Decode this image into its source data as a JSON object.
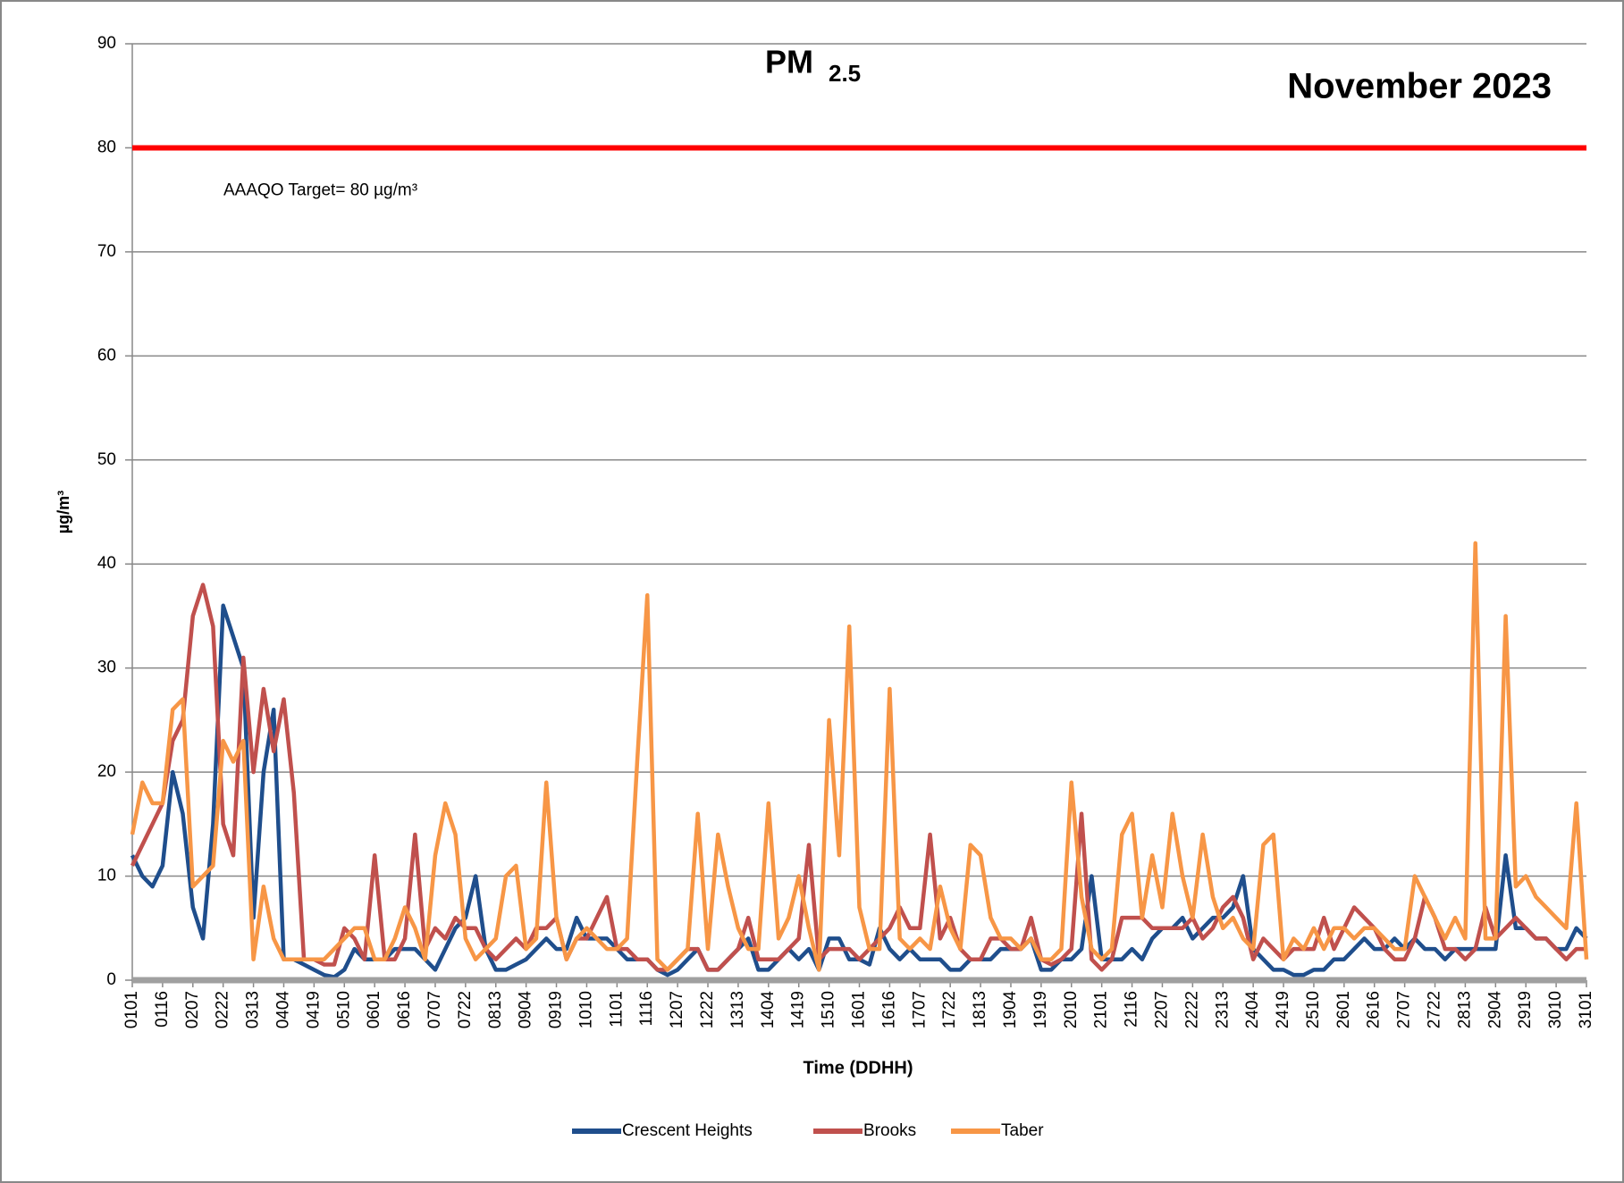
{
  "chart_data": {
    "type": "line",
    "title": "PM",
    "title_subscript": "2.5",
    "subtitle": "November 2023",
    "x_label": "Time (DDHH)",
    "y_label": "µg/m³",
    "target": {
      "value": 80,
      "label": "AAAQO Target= 80 µg/m³",
      "color": "#ff0000"
    },
    "ylim": [
      0,
      90
    ],
    "yticks": [
      0,
      10,
      20,
      30,
      40,
      50,
      60,
      70,
      80,
      90
    ],
    "grid": true,
    "categories": [
      "0101",
      null,
      null,
      "0116",
      null,
      null,
      "0207",
      null,
      null,
      "0222",
      null,
      null,
      "0313",
      null,
      null,
      "0404",
      null,
      null,
      "0419",
      null,
      null,
      "0510",
      null,
      null,
      "0601",
      null,
      null,
      "0616",
      null,
      null,
      "0707",
      null,
      null,
      "0722",
      null,
      null,
      "0813",
      null,
      null,
      "0904",
      null,
      null,
      "0919",
      null,
      null,
      "1010",
      null,
      null,
      "1101",
      null,
      null,
      "1116",
      null,
      null,
      "1207",
      null,
      null,
      "1222",
      null,
      null,
      "1313",
      null,
      null,
      "1404",
      null,
      null,
      "1419",
      null,
      null,
      "1510",
      null,
      null,
      "1601",
      null,
      null,
      "1616",
      null,
      null,
      "1707",
      null,
      null,
      "1722",
      null,
      null,
      "1813",
      null,
      null,
      "1904",
      null,
      null,
      "1919",
      null,
      null,
      "2010",
      null,
      null,
      "2101",
      null,
      null,
      "2116",
      null,
      null,
      "2207",
      null,
      null,
      "2222",
      null,
      null,
      "2313",
      null,
      null,
      "2404",
      null,
      null,
      "2419",
      null,
      null,
      "2510",
      null,
      null,
      "2601",
      null,
      null,
      "2616",
      null,
      null,
      "2707",
      null,
      null,
      "2722",
      null,
      null,
      "2813",
      null,
      null,
      "2904",
      null,
      null,
      "2919",
      null,
      null,
      "3010",
      null,
      null,
      "3101"
    ],
    "series": [
      {
        "name": "Crescent Heights",
        "color": "#1f4e8c",
        "values": [
          12,
          10,
          9,
          11,
          20,
          16,
          7,
          4,
          15,
          36,
          33,
          30,
          6,
          20,
          26,
          2,
          2,
          1.5,
          1,
          0.5,
          0.3,
          1,
          3,
          2,
          2,
          2,
          3,
          3,
          3,
          2,
          1,
          3,
          5,
          6,
          10,
          3,
          1,
          1,
          1.5,
          2,
          3,
          4,
          3,
          3,
          6,
          4,
          4,
          4,
          3,
          2,
          2,
          2,
          1,
          0.5,
          1,
          2,
          3,
          1,
          1,
          2,
          3,
          4,
          1,
          1,
          2,
          3,
          2,
          3,
          1,
          4,
          4,
          2,
          2,
          1.5,
          5,
          3,
          2,
          3,
          2,
          2,
          2,
          1,
          1,
          2,
          2,
          2,
          3,
          3,
          3,
          4,
          1,
          1,
          2,
          2,
          3,
          10,
          2,
          2,
          2,
          3,
          2,
          4,
          5,
          5,
          6,
          4,
          5,
          6,
          6,
          7,
          10,
          3,
          2,
          1,
          1,
          0.5,
          0.5,
          1,
          1,
          2,
          2,
          3,
          4,
          3,
          3,
          4,
          3,
          4,
          3,
          3,
          2,
          3,
          3,
          3,
          3,
          3,
          12,
          5,
          5,
          4,
          4,
          3,
          3,
          5,
          4
        ]
      },
      {
        "name": "Brooks",
        "color": "#c0504d",
        "values": [
          11,
          13,
          15,
          17,
          23,
          25,
          35,
          38,
          34,
          15,
          12,
          31,
          20,
          28,
          22,
          27,
          18,
          2,
          2,
          1.5,
          1.5,
          5,
          4,
          2,
          12,
          2,
          2,
          4,
          14,
          3,
          5,
          4,
          6,
          5,
          5,
          3,
          2,
          3,
          4,
          3,
          5,
          5,
          6,
          2,
          4,
          4,
          6,
          8,
          3,
          3,
          2,
          2,
          1,
          1,
          2,
          3,
          3,
          1,
          1,
          2,
          3,
          6,
          2,
          2,
          2,
          3,
          4,
          13,
          2,
          3,
          3,
          3,
          2,
          3,
          4,
          5,
          7,
          5,
          5,
          14,
          4,
          6,
          3,
          2,
          2,
          4,
          4,
          3,
          3,
          6,
          2,
          1.5,
          2,
          3,
          16,
          2,
          1,
          2,
          6,
          6,
          6,
          5,
          5,
          5,
          5,
          6,
          4,
          5,
          7,
          8,
          6,
          2,
          4,
          3,
          2,
          3,
          3,
          3,
          6,
          3,
          5,
          7,
          6,
          5,
          3,
          2,
          2,
          4,
          8,
          6,
          3,
          3,
          2,
          3,
          7,
          4,
          5,
          6,
          5,
          4,
          4,
          3,
          2,
          3,
          3
        ]
      },
      {
        "name": "Taber",
        "color": "#f79646",
        "values": [
          14,
          19,
          17,
          17,
          26,
          27,
          9,
          10,
          11,
          23,
          21,
          23,
          2,
          9,
          4,
          2,
          2,
          2,
          2,
          2,
          3,
          4,
          5,
          5,
          2,
          2,
          4,
          7,
          5,
          2,
          12,
          17,
          14,
          4,
          2,
          3,
          4,
          10,
          11,
          3,
          4,
          19,
          6,
          2,
          4,
          5,
          4,
          3,
          3,
          4,
          21,
          37,
          2,
          1,
          2,
          3,
          16,
          3,
          14,
          9,
          5,
          3,
          3,
          17,
          4,
          6,
          10,
          5,
          1,
          25,
          12,
          34,
          7,
          3,
          3,
          28,
          4,
          3,
          4,
          3,
          9,
          5,
          3,
          13,
          12,
          6,
          4,
          4,
          3,
          4,
          2,
          2,
          3,
          19,
          8,
          3,
          2,
          3,
          14,
          16,
          6,
          12,
          7,
          16,
          10,
          6,
          14,
          8,
          5,
          6,
          4,
          3,
          13,
          14,
          2,
          4,
          3,
          5,
          3,
          5,
          5,
          4,
          5,
          5,
          4,
          3,
          3,
          10,
          8,
          6,
          4,
          6,
          4,
          42,
          4,
          4,
          35,
          9,
          10,
          8,
          7,
          6,
          5,
          17,
          2
        ]
      }
    ]
  }
}
